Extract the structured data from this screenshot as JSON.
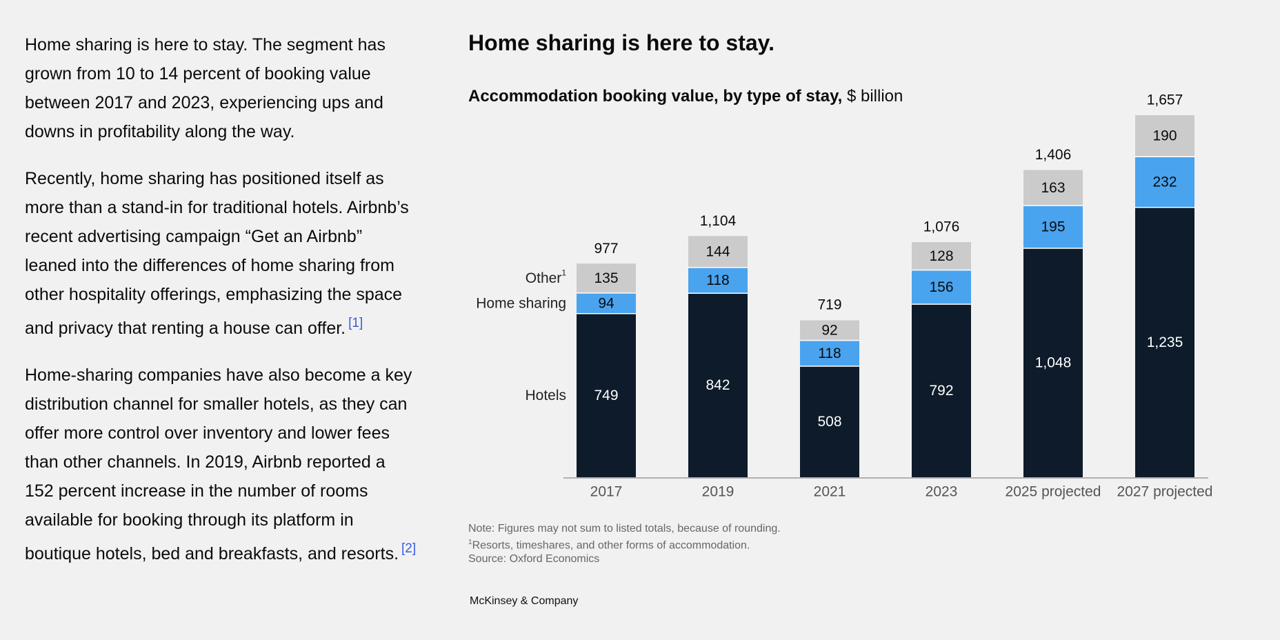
{
  "article": {
    "paragraphs": [
      {
        "text": "Home sharing is here to stay. The segment has grown from 10 to 14 percent of booking value between 2017 and 2023, experiencing ups and downs in profitability along the way.",
        "ref": ""
      },
      {
        "text": "Recently, home sharing has positioned itself as more than a stand-in for traditional hotels. Airbnb’s recent advertising campaign “Get an Airbnb” leaned into the differences of home sharing from other hospitality offerings, emphasizing the space and privacy that renting a house can offer.",
        "ref": "[1]"
      },
      {
        "text": "Home-sharing companies have also become a key distribution channel for smaller hotels, as they can offer more control over inventory and lower fees than other channels. In 2019, Airbnb reported a 152 percent increase in the number of rooms available for booking through its platform in boutique hotels, bed and breakfasts, and resorts.",
        "ref": "[2]"
      }
    ]
  },
  "chart_data": {
    "type": "bar",
    "stacked": true,
    "title": "Home sharing is here to stay.",
    "subtitle_bold": "Accommodation booking value, by type of stay,",
    "subtitle_unit": "$ billion",
    "categories": [
      "2017",
      "2019",
      "2021",
      "2023",
      "2025 projected",
      "2027 projected"
    ],
    "series": [
      {
        "name": "Hotels",
        "values": [
          749,
          842,
          508,
          792,
          1048,
          1235
        ],
        "color": "#0d1b2a",
        "label_color": "#ffffff",
        "labels": [
          "749",
          "842",
          "508",
          "792",
          "1,048",
          "1,235"
        ]
      },
      {
        "name": "Home sharing",
        "values": [
          94,
          118,
          118,
          156,
          195,
          232
        ],
        "color": "#4aa3ee",
        "label_color": "#0b0b0b",
        "labels": [
          "94",
          "118",
          "118",
          "156",
          "195",
          "232"
        ]
      },
      {
        "name": "Other",
        "legend_sup": "1",
        "values": [
          135,
          144,
          92,
          128,
          163,
          190
        ],
        "color": "#cbcbcb",
        "label_color": "#0b0b0b",
        "labels": [
          "135",
          "144",
          "92",
          "128",
          "163",
          "190"
        ]
      }
    ],
    "totals": [
      "977",
      "1,104",
      "719",
      "1,076",
      "1,406",
      "1,657"
    ],
    "total_values": [
      977,
      1104,
      719,
      1076,
      1406,
      1657
    ],
    "ylim": [
      0,
      1657
    ],
    "legend_placement": "left of first bar",
    "axis_color": "#9a9a9a"
  },
  "notes": {
    "note": "Note: Figures may not sum to listed totals, because of rounding.",
    "footnote_marker": "1",
    "footnote": "Resorts, timeshares, and other forms of accommodation.",
    "source": "Source: Oxford Economics"
  },
  "brand": "McKinsey & Company"
}
